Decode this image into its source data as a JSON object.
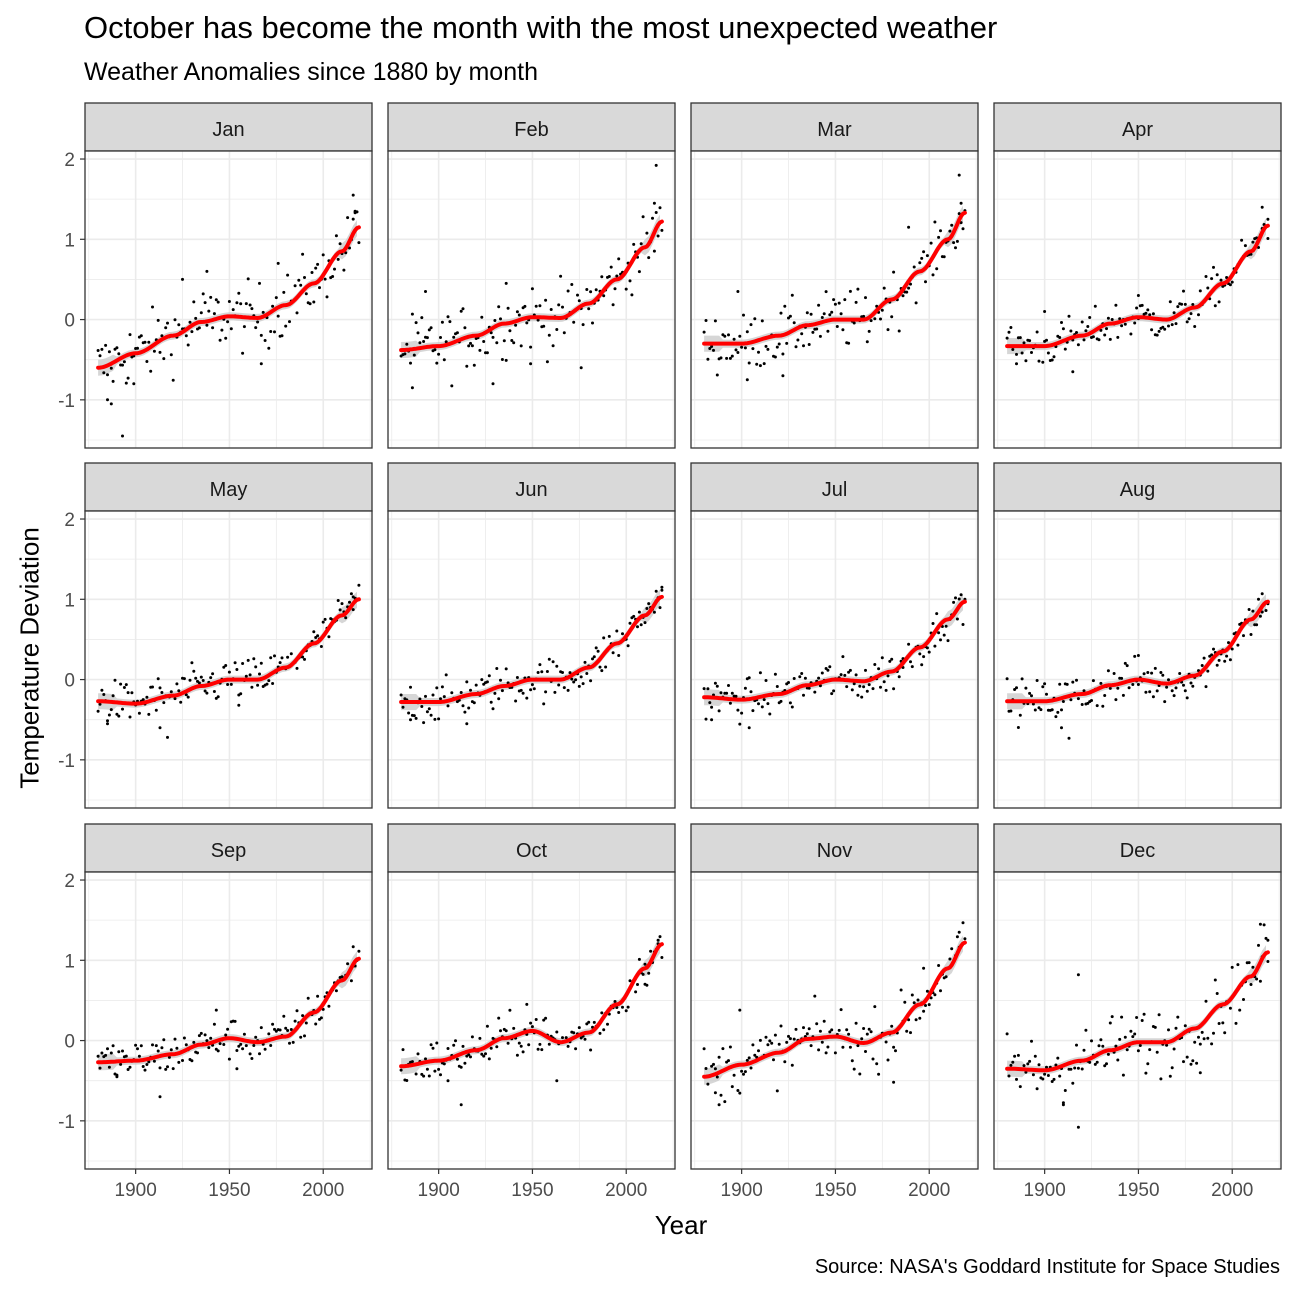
{
  "title": "October has become the month with the most unexpected weather",
  "subtitle": "Weather Anomalies since 1880 by month",
  "caption": "Source: NASA's Goddard Institute for Space Studies",
  "colors": {
    "smooth_line": "#ff0000",
    "confidence_band": "#c8c8c8",
    "points": "#000000",
    "strip_fill": "#d9d9d9",
    "grid": "#ebebeb",
    "frame": "#333333"
  },
  "chart_data": {
    "type": "scatter",
    "xlabel": "Year",
    "ylabel": "Temperature Deviation",
    "xlim": [
      1873,
      2026
    ],
    "ylim": [
      -1.6,
      2.1
    ],
    "x_ticks": [
      1900,
      1950,
      2000
    ],
    "y_ticks": [
      -1,
      0,
      1,
      2
    ],
    "grid": true,
    "layout": "facet grid 3 rows x 4 columns",
    "points_series": "monthly anomaly points, 1880-2019",
    "smooth_series": "smoothed trend with grey confidence band",
    "facets": [
      {
        "month": "Jan",
        "smooth": [
          [
            1880,
            -0.6
          ],
          [
            1900,
            -0.42
          ],
          [
            1920,
            -0.2
          ],
          [
            1935,
            -0.03
          ],
          [
            1950,
            0.04
          ],
          [
            1965,
            0.02
          ],
          [
            1980,
            0.18
          ],
          [
            1995,
            0.45
          ],
          [
            2010,
            0.85
          ],
          [
            2019,
            1.15
          ]
        ],
        "outliers": [
          [
            1885,
            -1.0
          ],
          [
            1887,
            -1.05
          ],
          [
            1893,
            -1.45
          ],
          [
            1899,
            -0.8
          ],
          [
            1925,
            0.5
          ],
          [
            1938,
            0.6
          ],
          [
            1967,
            -0.55
          ],
          [
            1976,
            0.7
          ],
          [
            2016,
            1.55
          ],
          [
            2017,
            1.35
          ]
        ]
      },
      {
        "month": "Feb",
        "smooth": [
          [
            1880,
            -0.38
          ],
          [
            1900,
            -0.33
          ],
          [
            1920,
            -0.2
          ],
          [
            1935,
            -0.05
          ],
          [
            1950,
            0.03
          ],
          [
            1965,
            0.02
          ],
          [
            1980,
            0.2
          ],
          [
            1995,
            0.5
          ],
          [
            2010,
            0.9
          ],
          [
            2019,
            1.22
          ]
        ],
        "outliers": [
          [
            1886,
            -0.85
          ],
          [
            1893,
            0.35
          ],
          [
            1929,
            -0.8
          ],
          [
            1936,
            0.45
          ],
          [
            1949,
            -0.55
          ],
          [
            1976,
            -0.6
          ],
          [
            2016,
            1.92
          ],
          [
            2015,
            1.45
          ]
        ]
      },
      {
        "month": "Mar",
        "smooth": [
          [
            1880,
            -0.3
          ],
          [
            1900,
            -0.3
          ],
          [
            1920,
            -0.2
          ],
          [
            1935,
            -0.07
          ],
          [
            1950,
            0.0
          ],
          [
            1965,
            0.0
          ],
          [
            1980,
            0.25
          ],
          [
            1995,
            0.6
          ],
          [
            2010,
            1.0
          ],
          [
            2019,
            1.33
          ]
        ],
        "outliers": [
          [
            1898,
            0.35
          ],
          [
            1903,
            -0.75
          ],
          [
            1922,
            -0.7
          ],
          [
            1989,
            1.15
          ],
          [
            2016,
            1.8
          ],
          [
            2017,
            1.45
          ]
        ]
      },
      {
        "month": "Apr",
        "smooth": [
          [
            1880,
            -0.33
          ],
          [
            1900,
            -0.33
          ],
          [
            1920,
            -0.2
          ],
          [
            1935,
            -0.05
          ],
          [
            1950,
            0.03
          ],
          [
            1965,
            0.0
          ],
          [
            1980,
            0.15
          ],
          [
            1995,
            0.45
          ],
          [
            2010,
            0.85
          ],
          [
            2019,
            1.17
          ]
        ],
        "outliers": [
          [
            1885,
            -0.55
          ],
          [
            1900,
            0.1
          ],
          [
            1915,
            -0.65
          ],
          [
            1950,
            0.3
          ],
          [
            2016,
            1.4
          ],
          [
            2019,
            1.25
          ]
        ]
      },
      {
        "month": "May",
        "smooth": [
          [
            1880,
            -0.27
          ],
          [
            1900,
            -0.3
          ],
          [
            1920,
            -0.2
          ],
          [
            1935,
            -0.08
          ],
          [
            1950,
            0.0
          ],
          [
            1965,
            0.0
          ],
          [
            1980,
            0.15
          ],
          [
            1995,
            0.45
          ],
          [
            2010,
            0.8
          ],
          [
            2019,
            1.0
          ]
        ],
        "outliers": [
          [
            1917,
            -0.72
          ],
          [
            1913,
            -0.6
          ],
          [
            1885,
            -0.55
          ],
          [
            1955,
            -0.32
          ],
          [
            2016,
            1.03
          ]
        ]
      },
      {
        "month": "Jun",
        "smooth": [
          [
            1880,
            -0.28
          ],
          [
            1900,
            -0.28
          ],
          [
            1920,
            -0.18
          ],
          [
            1935,
            -0.08
          ],
          [
            1950,
            0.0
          ],
          [
            1965,
            0.0
          ],
          [
            1980,
            0.15
          ],
          [
            1995,
            0.45
          ],
          [
            2010,
            0.8
          ],
          [
            2019,
            1.03
          ]
        ],
        "outliers": [
          [
            1885,
            -0.5
          ],
          [
            1915,
            -0.55
          ],
          [
            2019,
            1.15
          ],
          [
            2016,
            1.1
          ]
        ]
      },
      {
        "month": "Jul",
        "smooth": [
          [
            1880,
            -0.22
          ],
          [
            1900,
            -0.25
          ],
          [
            1920,
            -0.18
          ],
          [
            1935,
            -0.07
          ],
          [
            1950,
            0.0
          ],
          [
            1965,
            -0.02
          ],
          [
            1980,
            0.1
          ],
          [
            1995,
            0.4
          ],
          [
            2010,
            0.75
          ],
          [
            2019,
            0.97
          ]
        ],
        "outliers": [
          [
            1904,
            -0.6
          ],
          [
            1884,
            -0.5
          ],
          [
            2019,
            1.0
          ],
          [
            1986,
            0.15
          ]
        ]
      },
      {
        "month": "Aug",
        "smooth": [
          [
            1880,
            -0.27
          ],
          [
            1900,
            -0.27
          ],
          [
            1920,
            -0.18
          ],
          [
            1935,
            -0.07
          ],
          [
            1950,
            0.0
          ],
          [
            1965,
            -0.05
          ],
          [
            1980,
            0.05
          ],
          [
            1995,
            0.35
          ],
          [
            2010,
            0.75
          ],
          [
            2019,
            0.97
          ]
        ],
        "outliers": [
          [
            1913,
            -0.73
          ],
          [
            1909,
            -0.6
          ],
          [
            1950,
            0.3
          ],
          [
            2016,
            1.07
          ]
        ]
      },
      {
        "month": "Sep",
        "smooth": [
          [
            1880,
            -0.27
          ],
          [
            1900,
            -0.25
          ],
          [
            1920,
            -0.17
          ],
          [
            1935,
            -0.05
          ],
          [
            1950,
            0.03
          ],
          [
            1965,
            -0.02
          ],
          [
            1980,
            0.05
          ],
          [
            1995,
            0.35
          ],
          [
            2010,
            0.75
          ],
          [
            2019,
            1.02
          ]
        ],
        "outliers": [
          [
            1913,
            -0.7
          ],
          [
            1890,
            -0.45
          ],
          [
            1943,
            0.38
          ],
          [
            1954,
            -0.35
          ],
          [
            2016,
            1.17
          ]
        ]
      },
      {
        "month": "Oct",
        "smooth": [
          [
            1880,
            -0.32
          ],
          [
            1900,
            -0.25
          ],
          [
            1920,
            -0.12
          ],
          [
            1935,
            0.03
          ],
          [
            1950,
            0.12
          ],
          [
            1965,
            -0.02
          ],
          [
            1980,
            0.1
          ],
          [
            1995,
            0.45
          ],
          [
            2010,
            0.9
          ],
          [
            2019,
            1.2
          ]
        ],
        "outliers": [
          [
            1912,
            -0.8
          ],
          [
            1905,
            -0.5
          ],
          [
            1963,
            -0.5
          ],
          [
            1947,
            0.45
          ],
          [
            2017,
            1.25
          ],
          [
            2010,
            0.95
          ]
        ]
      },
      {
        "month": "Nov",
        "smooth": [
          [
            1880,
            -0.45
          ],
          [
            1900,
            -0.3
          ],
          [
            1920,
            -0.15
          ],
          [
            1935,
            0.02
          ],
          [
            1950,
            0.05
          ],
          [
            1965,
            -0.03
          ],
          [
            1980,
            0.1
          ],
          [
            1995,
            0.45
          ],
          [
            2010,
            0.9
          ],
          [
            2019,
            1.22
          ]
        ],
        "outliers": [
          [
            1888,
            -0.8
          ],
          [
            1886,
            -0.65
          ],
          [
            1899,
            0.38
          ],
          [
            1981,
            -0.52
          ],
          [
            1997,
            0.9
          ],
          [
            2016,
            1.35
          ]
        ]
      },
      {
        "month": "Dec",
        "smooth": [
          [
            1880,
            -0.35
          ],
          [
            1900,
            -0.37
          ],
          [
            1920,
            -0.25
          ],
          [
            1935,
            -0.12
          ],
          [
            1950,
            -0.02
          ],
          [
            1965,
            -0.02
          ],
          [
            1980,
            0.15
          ],
          [
            1995,
            0.45
          ],
          [
            2010,
            0.8
          ],
          [
            2019,
            1.1
          ]
        ],
        "outliers": [
          [
            1918,
            -1.08
          ],
          [
            1910,
            -0.8
          ],
          [
            1918,
            0.82
          ],
          [
            1983,
            -0.4
          ],
          [
            2015,
            1.45
          ],
          [
            2019,
            1.25
          ]
        ]
      }
    ]
  }
}
